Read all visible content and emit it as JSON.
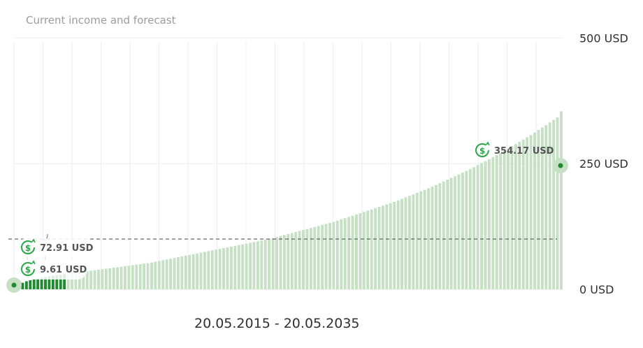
{
  "title": "Current income and forecast",
  "date_range": "20.05.2015 - 20.05.2035",
  "colors": {
    "bar": "#c6e0c5",
    "bar_current": "#1f8a2e",
    "grid": "#eeeeee",
    "dashed": "#555555",
    "icon": "#28a745",
    "text": "#2f2f2f",
    "label_text": "#555555"
  },
  "icons": {
    "callout": "dollar-refresh-icon"
  },
  "annotations": {
    "end": "354.17 USD",
    "mid": "72.91 USD",
    "start": "9.61 USD"
  },
  "chart_data": {
    "type": "bar",
    "title": "Current income and forecast",
    "y_unit": "USD",
    "ylim": [
      0,
      520
    ],
    "yticks": [
      0,
      250,
      500
    ],
    "ytick_labels": [
      "0 USD",
      "250 USD",
      "500 USD"
    ],
    "gridlines": true,
    "x_range_label": "20.05.2015 - 20.05.2035",
    "series": [
      {
        "values": [
          9.61,
          13.0,
          16.0,
          18.0,
          20.0,
          21.5,
          23.0,
          24.5,
          26.0,
          27.0,
          28.0,
          29.0,
          30.0,
          31.0,
          32.0,
          33.0,
          34.0,
          35.0,
          36.0,
          37.0,
          38.0,
          39.0,
          40.0,
          41.0,
          42.0,
          43.0,
          44.0,
          45.0,
          46.0,
          47.0,
          48.0,
          49.0,
          50.0,
          51.0,
          52.0,
          53.5,
          55.0,
          56.5,
          58.0,
          59.5,
          61.0,
          62.5,
          64.0,
          65.5,
          67.0,
          68.5,
          70.0,
          71.5,
          73.0,
          74.5,
          76.0,
          77.5,
          79.0,
          80.5,
          82.0,
          83.5,
          85.0,
          86.5,
          88.0,
          89.5,
          91.0,
          92.5,
          94.0,
          95.5,
          97.0,
          98.5,
          100.0,
          102.0,
          104.0,
          106.0,
          108.0,
          110.0,
          112.0,
          114.0,
          116.0,
          118.0,
          120.0,
          122.0,
          124.0,
          126.0,
          128.0,
          130.0,
          132.0,
          134.0,
          136.5,
          139.0,
          141.5,
          144.0,
          146.5,
          149.0,
          151.5,
          154.0,
          156.5,
          159.0,
          161.5,
          164.0,
          166.5,
          169.0,
          171.5,
          174.0,
          177.0,
          180.0,
          183.0,
          186.0,
          189.0,
          192.0,
          195.0,
          198.0,
          201.0,
          204.0,
          207.5,
          211.0,
          214.5,
          218.0,
          221.5,
          225.0,
          228.5,
          232.0,
          235.5,
          239.0,
          243.0,
          247.0,
          251.0,
          255.0,
          259.0,
          263.0,
          267.0,
          271.0,
          275.5,
          280.0,
          284.5,
          289.0,
          293.5,
          298.0,
          302.5,
          307.0,
          312.0,
          317.0,
          322.0,
          327.0,
          332.0,
          337.0,
          342.0,
          354.17
        ],
        "current_count": 13
      }
    ],
    "reference_lines": [
      {
        "value": 100,
        "style": "dashed"
      }
    ],
    "annotations": [
      {
        "label": "354.17 USD",
        "value": 354.17,
        "at": "end"
      },
      {
        "label": "72.91 USD",
        "value": 72.91,
        "at": "start"
      },
      {
        "label": "9.61 USD",
        "value": 9.61,
        "at": "start"
      }
    ]
  }
}
